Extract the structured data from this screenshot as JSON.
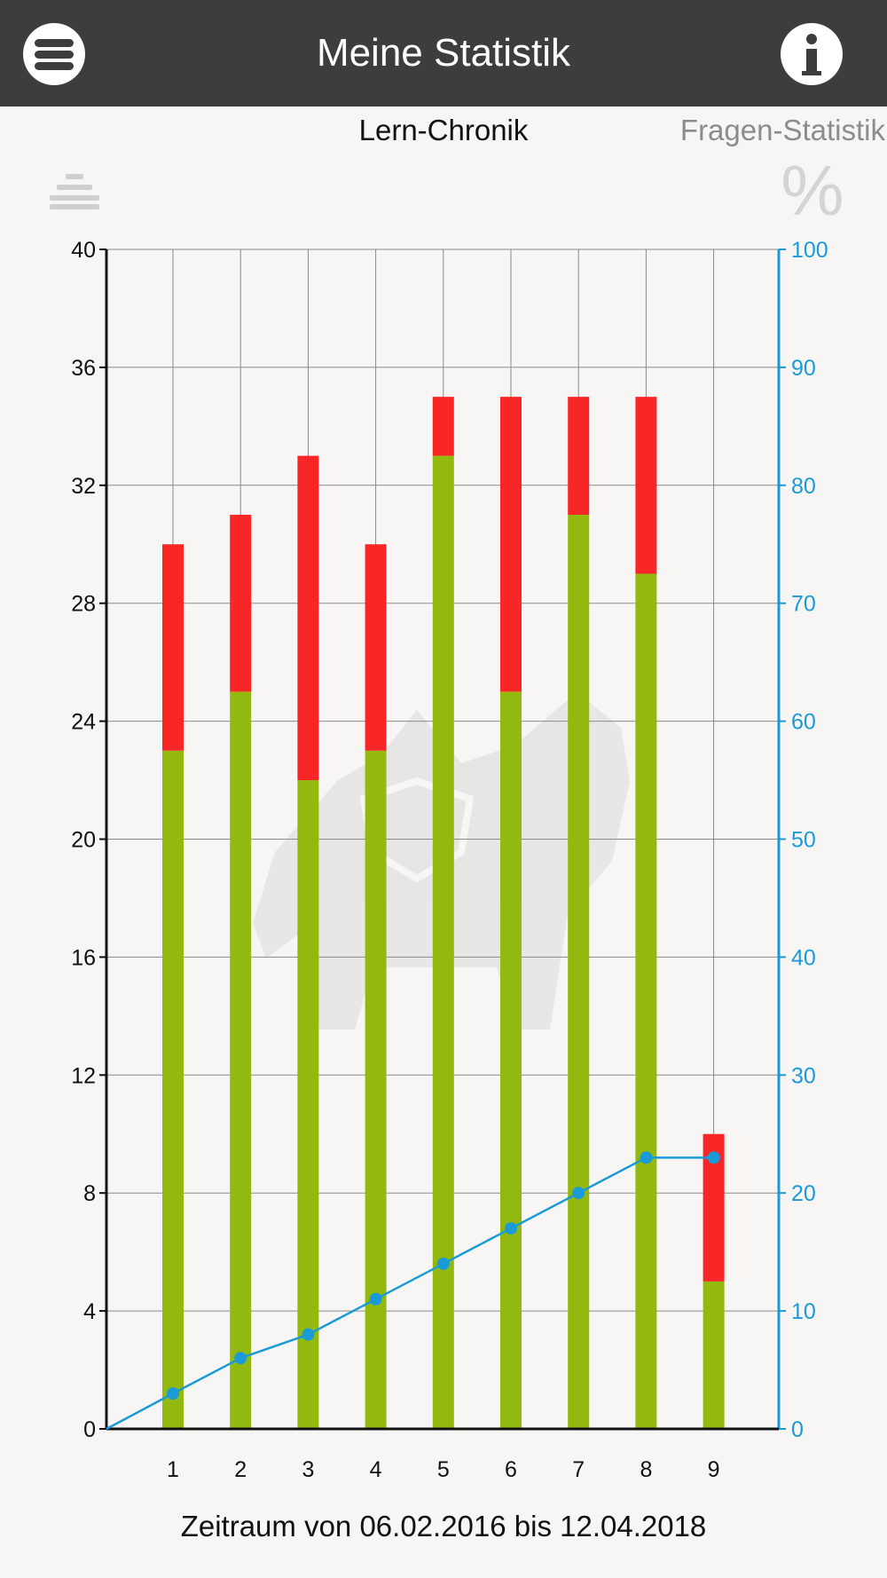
{
  "header": {
    "title": "Meine Statistik",
    "menu_icon": "hamburger-menu-icon",
    "info_icon": "info-icon"
  },
  "tabs": [
    {
      "label": "Lern-Chronik",
      "active": true
    },
    {
      "label": "Fragen-Statistik",
      "active": false
    }
  ],
  "toolbar": {
    "left_icon": "list-view-icon",
    "right_icon": "percent-icon",
    "right_icon_glyph": "%"
  },
  "colors": {
    "header_bg": "#3d3d3d",
    "correct": "#93b90e",
    "wrong": "#f82626",
    "line": "#1a9bd7"
  },
  "chart_data": {
    "type": "bar",
    "stacked": true,
    "categories": [
      "1",
      "2",
      "3",
      "4",
      "5",
      "6",
      "7",
      "8",
      "9"
    ],
    "series": [
      {
        "values": [
          23,
          25,
          22,
          23,
          33,
          25,
          31,
          29,
          5
        ],
        "color": "#93b90e"
      },
      {
        "values": [
          7,
          6,
          11,
          7,
          2,
          10,
          4,
          6,
          5
        ],
        "color": "#f82626"
      }
    ],
    "line": {
      "axis": "right",
      "color": "#1a9bd7",
      "x": [
        "0",
        "1",
        "2",
        "3",
        "4",
        "5",
        "6",
        "7",
        "8",
        "9"
      ],
      "values": [
        0,
        3,
        6,
        8,
        11,
        14,
        17,
        20,
        23,
        23
      ]
    },
    "ylim": [
      0,
      40
    ],
    "yticks": [
      0,
      4,
      8,
      12,
      16,
      20,
      24,
      28,
      32,
      36,
      40
    ],
    "y2lim": [
      0,
      100
    ],
    "y2ticks": [
      0,
      10,
      20,
      30,
      40,
      50,
      60,
      70,
      80,
      90,
      100
    ],
    "grid": true
  },
  "footer": {
    "period": "Zeitraum von 06.02.2016 bis 12.04.2018"
  }
}
